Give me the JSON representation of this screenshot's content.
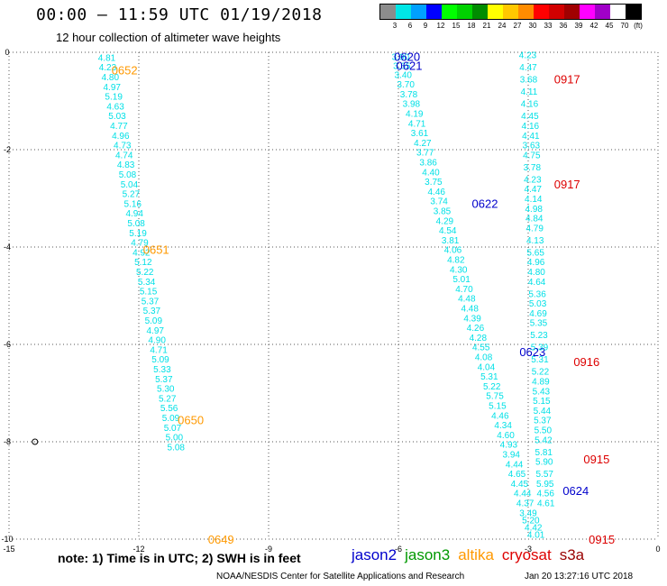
{
  "header": {
    "title": "00:00 — 11:59 UTC 01/19/2018",
    "subtitle": "12 hour collection of altimeter wave heights"
  },
  "legend": {
    "colors": [
      "#8c8c8c",
      "#00e6e6",
      "#00a0ff",
      "#0000ff",
      "#00ff00",
      "#00d200",
      "#008c00",
      "#ffff00",
      "#ffc800",
      "#ff8c00",
      "#ff0000",
      "#d20000",
      "#a00000",
      "#ff00ff",
      "#a000c8",
      "#ffffff",
      "#000000"
    ],
    "labels": [
      "3",
      "6",
      "9",
      "12",
      "15",
      "18",
      "21",
      "24",
      "27",
      "30",
      "33",
      "36",
      "39",
      "42",
      "45",
      "70",
      "(ft)"
    ]
  },
  "axes": {
    "x_ticks": [
      "-15",
      "-12",
      "-9",
      "-6",
      "-3",
      "0"
    ],
    "y_ticks": [
      "0",
      "-2",
      "-4",
      "-6",
      "-8",
      "-10"
    ]
  },
  "chart_data": {
    "type": "scatter",
    "x_range": [
      -15,
      0
    ],
    "y_range": [
      -10,
      0
    ],
    "tracks": [
      {
        "name": "altika",
        "color": "#ff9900",
        "time_labels": [
          {
            "text": "0652",
            "lon": -12.33,
            "lat": -0.36
          },
          {
            "text": "0651",
            "lon": -11.6,
            "lat": -4.05
          },
          {
            "text": "0650",
            "lon": -10.8,
            "lat": -7.55
          },
          {
            "text": "0649",
            "lon": -10.1,
            "lat": -10.0
          }
        ],
        "points": [
          {
            "v": "4.81",
            "lon": -12.74,
            "lat": -0.1
          },
          {
            "v": "4.23",
            "lon": -12.72,
            "lat": -0.3
          },
          {
            "v": "4.80",
            "lon": -12.66,
            "lat": -0.5
          },
          {
            "v": "4.97",
            "lon": -12.62,
            "lat": -0.7
          },
          {
            "v": "5.19",
            "lon": -12.58,
            "lat": -0.9
          },
          {
            "v": "4.63",
            "lon": -12.54,
            "lat": -1.1
          },
          {
            "v": "5.03",
            "lon": -12.5,
            "lat": -1.3
          },
          {
            "v": "4.77",
            "lon": -12.46,
            "lat": -1.5
          },
          {
            "v": "4.96",
            "lon": -12.42,
            "lat": -1.7
          },
          {
            "v": "4.73",
            "lon": -12.38,
            "lat": -1.9
          },
          {
            "v": "4.74",
            "lon": -12.34,
            "lat": -2.1
          },
          {
            "v": "4.83",
            "lon": -12.3,
            "lat": -2.3
          },
          {
            "v": "5.08",
            "lon": -12.26,
            "lat": -2.5
          },
          {
            "v": "5.04",
            "lon": -12.22,
            "lat": -2.7
          },
          {
            "v": "5.27",
            "lon": -12.18,
            "lat": -2.9
          },
          {
            "v": "5.16",
            "lon": -12.14,
            "lat": -3.1
          },
          {
            "v": "4.94",
            "lon": -12.1,
            "lat": -3.3
          },
          {
            "v": "5.08",
            "lon": -12.06,
            "lat": -3.5
          },
          {
            "v": "5.19",
            "lon": -12.02,
            "lat": -3.7
          },
          {
            "v": "4.79",
            "lon": -11.98,
            "lat": -3.9
          },
          {
            "v": "4.92",
            "lon": -11.94,
            "lat": -4.1
          },
          {
            "v": "5.12",
            "lon": -11.9,
            "lat": -4.3
          },
          {
            "v": "5.22",
            "lon": -11.86,
            "lat": -4.5
          },
          {
            "v": "5.34",
            "lon": -11.82,
            "lat": -4.7
          },
          {
            "v": "5.15",
            "lon": -11.78,
            "lat": -4.9
          },
          {
            "v": "5.37",
            "lon": -11.74,
            "lat": -5.1
          },
          {
            "v": "5.37",
            "lon": -11.7,
            "lat": -5.3
          },
          {
            "v": "5.09",
            "lon": -11.66,
            "lat": -5.5
          },
          {
            "v": "4.97",
            "lon": -11.62,
            "lat": -5.7
          },
          {
            "v": "4.90",
            "lon": -11.58,
            "lat": -5.9
          },
          {
            "v": "4.71",
            "lon": -11.54,
            "lat": -6.1
          },
          {
            "v": "5.09",
            "lon": -11.5,
            "lat": -6.3
          },
          {
            "v": "5.33",
            "lon": -11.46,
            "lat": -6.5
          },
          {
            "v": "5.37",
            "lon": -11.42,
            "lat": -6.7
          },
          {
            "v": "5.30",
            "lon": -11.38,
            "lat": -6.9
          },
          {
            "v": "5.27",
            "lon": -11.34,
            "lat": -7.1
          },
          {
            "v": "5.56",
            "lon": -11.3,
            "lat": -7.3
          },
          {
            "v": "5.09",
            "lon": -11.26,
            "lat": -7.5
          },
          {
            "v": "5.07",
            "lon": -11.22,
            "lat": -7.7
          },
          {
            "v": "5.00",
            "lon": -11.18,
            "lat": -7.9
          },
          {
            "v": "5.08",
            "lon": -11.14,
            "lat": -8.1
          }
        ]
      },
      {
        "name": "jason2",
        "color": "#0000cc",
        "time_labels": [
          {
            "text": "0620",
            "lon": -5.8,
            "lat": -0.08
          },
          {
            "text": "0621",
            "lon": -5.75,
            "lat": -0.27
          },
          {
            "text": "0622",
            "lon": -4.0,
            "lat": -3.1
          },
          {
            "text": "0623",
            "lon": -2.9,
            "lat": -6.15
          },
          {
            "text": "0624",
            "lon": -1.9,
            "lat": -9.0
          }
        ],
        "points": [
          {
            "v": "3.90",
            "lon": -5.95,
            "lat": -0.08
          },
          {
            "v": "3.65",
            "lon": -5.92,
            "lat": -0.27
          },
          {
            "v": "3.40",
            "lon": -5.89,
            "lat": -0.45
          },
          {
            "v": "3.70",
            "lon": -5.83,
            "lat": -0.65
          },
          {
            "v": "3.78",
            "lon": -5.76,
            "lat": -0.85
          },
          {
            "v": "3.98",
            "lon": -5.7,
            "lat": -1.05
          },
          {
            "v": "4.19",
            "lon": -5.63,
            "lat": -1.25
          },
          {
            "v": "4.71",
            "lon": -5.57,
            "lat": -1.45
          },
          {
            "v": "3.61",
            "lon": -5.51,
            "lat": -1.65
          },
          {
            "v": "4.27",
            "lon": -5.44,
            "lat": -1.85
          },
          {
            "v": "3.77",
            "lon": -5.38,
            "lat": -2.05
          },
          {
            "v": "3.86",
            "lon": -5.31,
            "lat": -2.25
          },
          {
            "v": "4.40",
            "lon": -5.25,
            "lat": -2.45
          },
          {
            "v": "3.75",
            "lon": -5.19,
            "lat": -2.65
          },
          {
            "v": "4.46",
            "lon": -5.12,
            "lat": -2.85
          },
          {
            "v": "3.74",
            "lon": -5.06,
            "lat": -3.05
          },
          {
            "v": "3.85",
            "lon": -4.99,
            "lat": -3.25
          },
          {
            "v": "4.29",
            "lon": -4.93,
            "lat": -3.45
          },
          {
            "v": "4.54",
            "lon": -4.86,
            "lat": -3.65
          },
          {
            "v": "3.81",
            "lon": -4.8,
            "lat": -3.85
          },
          {
            "v": "4.06",
            "lon": -4.74,
            "lat": -4.05
          },
          {
            "v": "4.82",
            "lon": -4.67,
            "lat": -4.25
          },
          {
            "v": "4.30",
            "lon": -4.61,
            "lat": -4.45
          },
          {
            "v": "5.01",
            "lon": -4.54,
            "lat": -4.65
          },
          {
            "v": "4.70",
            "lon": -4.48,
            "lat": -4.85
          },
          {
            "v": "4.48",
            "lon": -4.42,
            "lat": -5.05
          },
          {
            "v": "4.48",
            "lon": -4.35,
            "lat": -5.25
          },
          {
            "v": "4.39",
            "lon": -4.29,
            "lat": -5.45
          },
          {
            "v": "4.26",
            "lon": -4.22,
            "lat": -5.65
          },
          {
            "v": "4.28",
            "lon": -4.16,
            "lat": -5.85
          },
          {
            "v": "4.55",
            "lon": -4.09,
            "lat": -6.05
          },
          {
            "v": "4.08",
            "lon": -4.03,
            "lat": -6.25
          },
          {
            "v": "4.04",
            "lon": -3.97,
            "lat": -6.45
          },
          {
            "v": "5.31",
            "lon": -3.9,
            "lat": -6.65
          },
          {
            "v": "5.22",
            "lon": -3.84,
            "lat": -6.85
          },
          {
            "v": "5.75",
            "lon": -3.77,
            "lat": -7.05
          },
          {
            "v": "5.15",
            "lon": -3.71,
            "lat": -7.25
          },
          {
            "v": "4.46",
            "lon": -3.65,
            "lat": -7.45
          },
          {
            "v": "4.34",
            "lon": -3.58,
            "lat": -7.65
          },
          {
            "v": "4.60",
            "lon": -3.52,
            "lat": -7.85
          },
          {
            "v": "4.93",
            "lon": -3.45,
            "lat": -8.05
          },
          {
            "v": "3.94",
            "lon": -3.39,
            "lat": -8.25
          },
          {
            "v": "4.44",
            "lon": -3.32,
            "lat": -8.45
          },
          {
            "v": "4.65",
            "lon": -3.26,
            "lat": -8.65
          },
          {
            "v": "4.45",
            "lon": -3.2,
            "lat": -8.85
          },
          {
            "v": "4.44",
            "lon": -3.13,
            "lat": -9.05
          },
          {
            "v": "4.37",
            "lon": -3.07,
            "lat": -9.25
          },
          {
            "v": "3.49",
            "lon": -3.0,
            "lat": -9.45
          },
          {
            "v": "5.20",
            "lon": -2.94,
            "lat": -9.6
          },
          {
            "v": "4.42",
            "lon": -2.88,
            "lat": -9.75
          },
          {
            "v": "4.01",
            "lon": -2.82,
            "lat": -9.9
          }
        ]
      },
      {
        "name": "cryosat",
        "color": "#dd0000",
        "time_labels": [
          {
            "text": "0917",
            "lon": -2.1,
            "lat": -0.55
          },
          {
            "text": "0917",
            "lon": -2.1,
            "lat": -2.7
          },
          {
            "text": "0916",
            "lon": -1.65,
            "lat": -6.35
          },
          {
            "text": "0915",
            "lon": -1.42,
            "lat": -8.35
          },
          {
            "text": "0915",
            "lon": -1.3,
            "lat": -10.0
          }
        ],
        "points": [
          {
            "v": "4.23",
            "lon": -3.01,
            "lat": -0.05
          },
          {
            "v": "4.47",
            "lon": -3.0,
            "lat": -0.3
          },
          {
            "v": "3.68",
            "lon": -2.99,
            "lat": -0.55
          },
          {
            "v": "4.11",
            "lon": -2.98,
            "lat": -0.8
          },
          {
            "v": "4.16",
            "lon": -2.97,
            "lat": -1.05
          },
          {
            "v": "4.45",
            "lon": -2.96,
            "lat": -1.3
          },
          {
            "v": "4.16",
            "lon": -2.95,
            "lat": -1.5
          },
          {
            "v": "4.41",
            "lon": -2.94,
            "lat": -1.7
          },
          {
            "v": "3.63",
            "lon": -2.93,
            "lat": -1.9
          },
          {
            "v": "4.75",
            "lon": -2.92,
            "lat": -2.1
          },
          {
            "v": "3.78",
            "lon": -2.91,
            "lat": -2.35
          },
          {
            "v": "4.23",
            "lon": -2.9,
            "lat": -2.6
          },
          {
            "v": "4.47",
            "lon": -2.89,
            "lat": -2.8
          },
          {
            "v": "4.14",
            "lon": -2.88,
            "lat": -3.0
          },
          {
            "v": "4.98",
            "lon": -2.87,
            "lat": -3.2
          },
          {
            "v": "4.84",
            "lon": -2.86,
            "lat": -3.4
          },
          {
            "v": "4.79",
            "lon": -2.85,
            "lat": -3.6
          },
          {
            "v": "4.13",
            "lon": -2.84,
            "lat": -3.85
          },
          {
            "v": "5.65",
            "lon": -2.83,
            "lat": -4.1
          },
          {
            "v": "4.96",
            "lon": -2.82,
            "lat": -4.3
          },
          {
            "v": "4.80",
            "lon": -2.81,
            "lat": -4.5
          },
          {
            "v": "4.64",
            "lon": -2.8,
            "lat": -4.7
          },
          {
            "v": "5.36",
            "lon": -2.79,
            "lat": -4.95
          },
          {
            "v": "5.03",
            "lon": -2.78,
            "lat": -5.15
          },
          {
            "v": "4.69",
            "lon": -2.77,
            "lat": -5.35
          },
          {
            "v": "5.35",
            "lon": -2.76,
            "lat": -5.55
          },
          {
            "v": "5.23",
            "lon": -2.75,
            "lat": -5.8
          },
          {
            "v": "5.39",
            "lon": -2.74,
            "lat": -6.05
          },
          {
            "v": "5.31",
            "lon": -2.73,
            "lat": -6.3
          },
          {
            "v": "5.22",
            "lon": -2.72,
            "lat": -6.55
          },
          {
            "v": "4.89",
            "lon": -2.71,
            "lat": -6.75
          },
          {
            "v": "5.43",
            "lon": -2.7,
            "lat": -6.95
          },
          {
            "v": "5.15",
            "lon": -2.69,
            "lat": -7.15
          },
          {
            "v": "5.44",
            "lon": -2.68,
            "lat": -7.35
          },
          {
            "v": "5.37",
            "lon": -2.67,
            "lat": -7.55
          },
          {
            "v": "5.50",
            "lon": -2.66,
            "lat": -7.75
          },
          {
            "v": "5.42",
            "lon": -2.65,
            "lat": -7.95
          },
          {
            "v": "5.81",
            "lon": -2.64,
            "lat": -8.2
          },
          {
            "v": "5.90",
            "lon": -2.63,
            "lat": -8.4
          },
          {
            "v": "5.57",
            "lon": -2.62,
            "lat": -8.65
          },
          {
            "v": "5.95",
            "lon": -2.61,
            "lat": -8.85
          },
          {
            "v": "4.56",
            "lon": -2.6,
            "lat": -9.05
          },
          {
            "v": "4.61",
            "lon": -2.59,
            "lat": -9.25
          }
        ]
      }
    ],
    "markers": [
      {
        "name": "small-circle",
        "lon": -14.9,
        "lat": -8.0
      }
    ]
  },
  "footer": {
    "note": "note: 1) Time is in UTC; 2) SWH is in feet",
    "satellites": [
      {
        "name": "jason2",
        "color": "#0000cc"
      },
      {
        "name": "jason3",
        "color": "#009900"
      },
      {
        "name": "altika",
        "color": "#ff9900"
      },
      {
        "name": "cryosat",
        "color": "#dd0000"
      },
      {
        "name": "s3a",
        "color": "#990000"
      }
    ],
    "credit": "NOAA/NESDIS Center for Satellite Applications and Research",
    "stamp": "Jan 20 13:27:16 UTC 2018"
  }
}
